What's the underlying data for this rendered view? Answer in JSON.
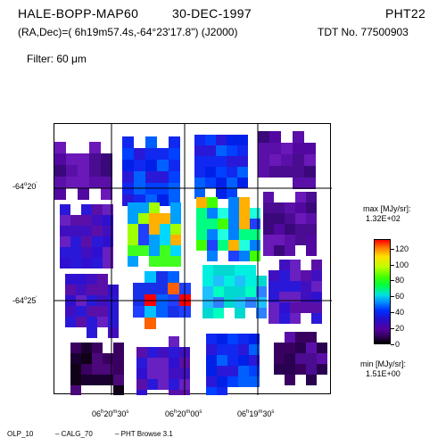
{
  "header": {
    "object": "HALE-BOPP-MAP60",
    "date": "30-DEC-1997",
    "instrument": "PHT22",
    "coords": "(RA,Dec)=( 6h19m57.4s,-64°23'17.8\") (J2000)",
    "tdt": "TDT No. 77500903",
    "filter": "Filter:  60 μm"
  },
  "axes": {
    "dec_labels": [
      {
        "deg": "-64",
        "min": "20"
      },
      {
        "deg": "-64",
        "min": "25"
      }
    ],
    "ra_labels": [
      {
        "h": "06",
        "m": "20",
        "s": "30"
      },
      {
        "h": "06",
        "m": "20",
        "s": "00"
      },
      {
        "h": "06",
        "m": "19",
        "s": "30"
      }
    ]
  },
  "colorbar": {
    "max_label": "max [MJy/sr]:",
    "max_value": "1.32E+02",
    "min_label": "min [MJy/sr]:",
    "min_value": "1.51E+00",
    "ticks": [
      "120",
      "100",
      "80",
      "60",
      "40",
      "20",
      "0"
    ],
    "range": [
      0,
      132
    ]
  },
  "footer": {
    "olp": "OLP_10",
    "calg": "– CALG_70",
    "browse": "– PHT Browse 3.1"
  }
}
